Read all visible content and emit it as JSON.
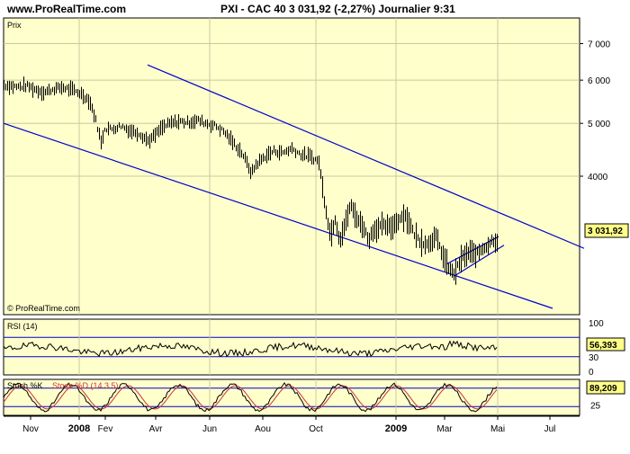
{
  "header": {
    "site": "www.ProRealTime.com",
    "title": "PXI - CAC 40    3 031,92 (-2,27%)    Journalier  9:31"
  },
  "panels": {
    "price_label": "Prix",
    "watermark": "© ProRealTime.com",
    "rsi_label": "RSI (14)",
    "stoch_label": "Stoch %K",
    "stoch_d_label": "Stoch %D (14 3 5)"
  },
  "colors": {
    "panel_bg": "#ffffcc",
    "grid": "#c8c8a0",
    "channel": "#0000cc",
    "price": "#000000",
    "stoch_d": "#cc3333"
  },
  "chart_data": {
    "type": "line",
    "price_panel": {
      "y_scale": "log",
      "y_ticks": [
        {
          "value": 4000,
          "label": "4000"
        },
        {
          "value": 5000,
          "label": "5 000"
        },
        {
          "value": 6000,
          "label": "6 000"
        },
        {
          "value": 7000,
          "label": "7 000"
        }
      ],
      "last_value": 3031.92,
      "last_label": "3 031,92",
      "series_points": [
        [
          0,
          5880
        ],
        [
          15,
          5830
        ],
        [
          25,
          5860
        ],
        [
          35,
          5770
        ],
        [
          45,
          5700
        ],
        [
          55,
          5780
        ],
        [
          65,
          5820
        ],
        [
          75,
          5760
        ],
        [
          85,
          5680
        ],
        [
          95,
          5500
        ],
        [
          100,
          5200
        ],
        [
          105,
          4850
        ],
        [
          108,
          4600
        ],
        [
          112,
          4900
        ],
        [
          120,
          4880
        ],
        [
          130,
          4950
        ],
        [
          140,
          4850
        ],
        [
          150,
          4800
        ],
        [
          160,
          4650
        ],
        [
          165,
          4700
        ],
        [
          175,
          4900
        ],
        [
          185,
          5000
        ],
        [
          195,
          5040
        ],
        [
          205,
          5020
        ],
        [
          215,
          5070
        ],
        [
          225,
          5000
        ],
        [
          235,
          4950
        ],
        [
          245,
          4820
        ],
        [
          255,
          4600
        ],
        [
          265,
          4400
        ],
        [
          275,
          4050
        ],
        [
          280,
          4200
        ],
        [
          290,
          4350
        ],
        [
          300,
          4450
        ],
        [
          310,
          4420
        ],
        [
          320,
          4500
        ],
        [
          330,
          4380
        ],
        [
          340,
          4350
        ],
        [
          350,
          4250
        ],
        [
          355,
          3700
        ],
        [
          360,
          3300
        ],
        [
          363,
          3100
        ],
        [
          368,
          3350
        ],
        [
          373,
          3050
        ],
        [
          380,
          3300
        ],
        [
          385,
          3550
        ],
        [
          390,
          3400
        ],
        [
          395,
          3300
        ],
        [
          400,
          3220
        ],
        [
          405,
          3050
        ],
        [
          410,
          3180
        ],
        [
          420,
          3250
        ],
        [
          430,
          3220
        ],
        [
          440,
          3350
        ],
        [
          445,
          3400
        ],
        [
          450,
          3300
        ],
        [
          455,
          3150
        ],
        [
          462,
          3050
        ],
        [
          470,
          3000
        ],
        [
          480,
          3100
        ],
        [
          488,
          2850
        ],
        [
          495,
          2700
        ],
        [
          500,
          2650
        ],
        [
          505,
          2750
        ],
        [
          510,
          2850
        ],
        [
          518,
          2900
        ],
        [
          525,
          2880
        ],
        [
          532,
          2950
        ],
        [
          538,
          3000
        ],
        [
          543,
          3060
        ],
        [
          548,
          3032
        ]
      ],
      "channel_lines": [
        {
          "from": [
            0,
            5000
          ],
          "to": [
            610,
            2290
          ],
          "name": ""
        },
        {
          "from": [
            160,
            6400
          ],
          "to": [
            645,
            2950
          ],
          "name": ""
        }
      ]
    },
    "rsi_panel": {
      "y_ticks": [
        {
          "value": 0,
          "label": "0"
        },
        {
          "value": 30,
          "label": "30"
        },
        {
          "value": 100,
          "label": "100"
        }
      ],
      "last_value": 56.393,
      "last_label": "56,393"
    },
    "stoch_panel": {
      "y_ticks": [
        {
          "value": 25,
          "label": "25"
        }
      ],
      "last_value": 89.209,
      "last_label": "89,209"
    },
    "x_ticks": [
      {
        "label": "Nov",
        "bold": false
      },
      {
        "label": "2008",
        "bold": true
      },
      {
        "label": "Fev",
        "bold": false
      },
      {
        "label": "Avr",
        "bold": false
      },
      {
        "label": "Jun",
        "bold": false
      },
      {
        "label": "Aou",
        "bold": false
      },
      {
        "label": "Oct",
        "bold": false
      },
      {
        "label": "2009",
        "bold": true
      },
      {
        "label": "Mar",
        "bold": false
      },
      {
        "label": "Mai",
        "bold": false
      },
      {
        "label": "Jul",
        "bold": false
      }
    ]
  }
}
